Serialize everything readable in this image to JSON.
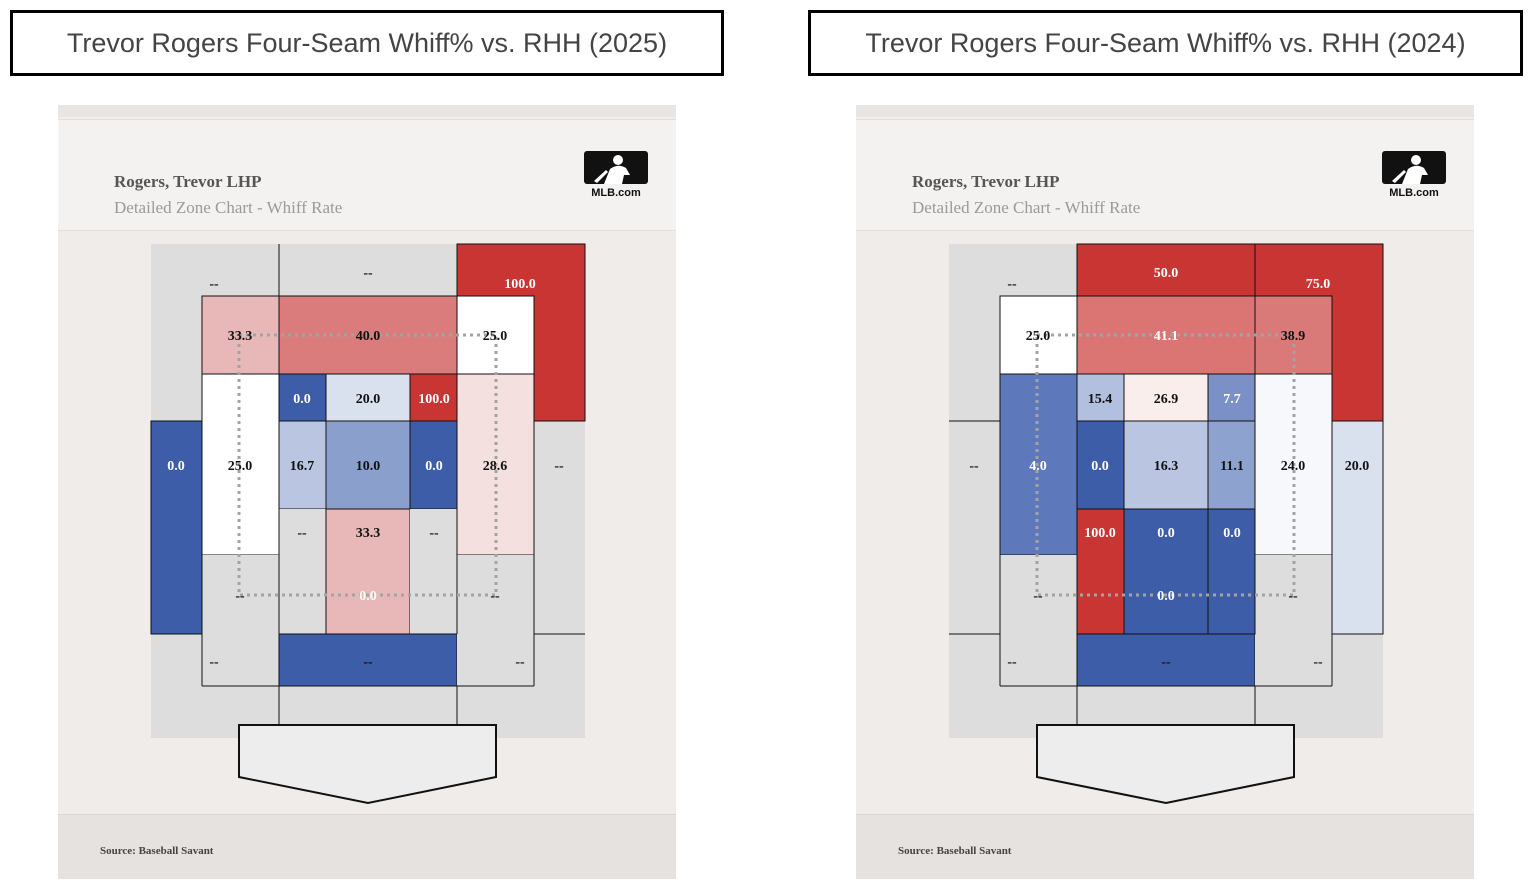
{
  "panels": [
    {
      "title": "Trevor Rogers Four-Seam Whiff% vs. RHH (2025)",
      "player": "Rogers, Trevor LHP",
      "subtitle": "Detailed Zone Chart - Whiff Rate",
      "logo_text": "MLB.com",
      "source": "Source: Baseball Savant"
    },
    {
      "title": "Trevor Rogers Four-Seam Whiff% vs. RHH (2024)",
      "player": "Rogers, Trevor LHP",
      "subtitle": "Detailed Zone Chart - Whiff Rate",
      "logo_text": "MLB.com",
      "source": "Source: Baseball Savant"
    }
  ],
  "colors": {
    "empty": "#dddddd",
    "red_strong": "#c83532",
    "blue_strong": "#3d5da8",
    "white": "#ffffff"
  },
  "chart_data": [
    {
      "type": "heatmap",
      "title": "Trevor Rogers Four-Seam Whiff% vs. RHH (2025)",
      "metric": "Whiff Rate",
      "zones": [
        {
          "id": "TL",
          "value": null,
          "label": "--",
          "color": "#dddddd"
        },
        {
          "id": "TM",
          "value": null,
          "label": "--",
          "color": "#dddddd"
        },
        {
          "id": "TR",
          "value": 100.0,
          "label": "100.0",
          "color": "#c83532"
        },
        {
          "id": "ML",
          "value": 0.0,
          "label": "0.0",
          "color": "#3d5da8"
        },
        {
          "id": "MR",
          "value": null,
          "label": "--",
          "color": "#dddddd"
        },
        {
          "id": "BL",
          "value": null,
          "label": "--",
          "color": "#dddddd"
        },
        {
          "id": "BM",
          "value": null,
          "label": "--",
          "color": "#dddddd"
        },
        {
          "id": "BR",
          "value": null,
          "label": "--",
          "color": "#dddddd"
        },
        {
          "id": "s1",
          "value": 33.3,
          "label": "33.3",
          "color": "#e8b8b8"
        },
        {
          "id": "s2",
          "value": 40.0,
          "label": "40.0",
          "color": "#db7c7c"
        },
        {
          "id": "s3",
          "value": 25.0,
          "label": "25.0",
          "color": "#ffffff"
        },
        {
          "id": "s4",
          "value": 25.0,
          "label": "25.0",
          "color": "#ffffff"
        },
        {
          "id": "s6",
          "value": 28.6,
          "label": "28.6",
          "color": "#f4e0df"
        },
        {
          "id": "s7",
          "value": null,
          "label": "--",
          "color": "#dddddd"
        },
        {
          "id": "s8",
          "value": 0.0,
          "label": "0.0",
          "color": "#3d5da8"
        },
        {
          "id": "s9",
          "value": null,
          "label": "--",
          "color": "#dddddd"
        },
        {
          "id": "z1",
          "value": 0.0,
          "label": "0.0",
          "color": "#3d5da8"
        },
        {
          "id": "z2",
          "value": 20.0,
          "label": "20.0",
          "color": "#d9e0ee"
        },
        {
          "id": "z3",
          "value": 100.0,
          "label": "100.0",
          "color": "#c83532"
        },
        {
          "id": "z4",
          "value": 16.7,
          "label": "16.7",
          "color": "#bac6e1"
        },
        {
          "id": "z5",
          "value": 10.0,
          "label": "10.0",
          "color": "#8b9fcc"
        },
        {
          "id": "z6",
          "value": 0.0,
          "label": "0.0",
          "color": "#3d5da8"
        },
        {
          "id": "z7",
          "value": null,
          "label": "--",
          "color": "#dddddd"
        },
        {
          "id": "z8",
          "value": 33.3,
          "label": "33.3",
          "color": "#e8b8b8"
        },
        {
          "id": "z9",
          "value": null,
          "label": "--",
          "color": "#dddddd"
        }
      ]
    },
    {
      "type": "heatmap",
      "title": "Trevor Rogers Four-Seam Whiff% vs. RHH (2024)",
      "metric": "Whiff Rate",
      "zones": [
        {
          "id": "TL",
          "value": null,
          "label": "--",
          "color": "#dddddd"
        },
        {
          "id": "TM",
          "value": 50.0,
          "label": "50.0",
          "color": "#c83532"
        },
        {
          "id": "TR",
          "value": 75.0,
          "label": "75.0",
          "color": "#c83532"
        },
        {
          "id": "ML",
          "value": null,
          "label": "--",
          "color": "#dddddd"
        },
        {
          "id": "MR",
          "value": 20.0,
          "label": "20.0",
          "color": "#d9e0ee"
        },
        {
          "id": "BL",
          "value": null,
          "label": "--",
          "color": "#dddddd"
        },
        {
          "id": "BM",
          "value": null,
          "label": "--",
          "color": "#dddddd"
        },
        {
          "id": "BR",
          "value": null,
          "label": "--",
          "color": "#dddddd"
        },
        {
          "id": "s1",
          "value": 25.0,
          "label": "25.0",
          "color": "#ffffff"
        },
        {
          "id": "s2",
          "value": 41.1,
          "label": "41.1",
          "color": "#da7573"
        },
        {
          "id": "s3",
          "value": 38.9,
          "label": "38.9",
          "color": "#da7a78"
        },
        {
          "id": "s4",
          "value": 4.0,
          "label": "4.0",
          "color": "#5e79bb"
        },
        {
          "id": "s6",
          "value": 24.0,
          "label": "24.0",
          "color": "#f7f8fc"
        },
        {
          "id": "s7",
          "value": null,
          "label": "--",
          "color": "#dddddd"
        },
        {
          "id": "s8",
          "value": 0.0,
          "label": "0.0",
          "color": "#3d5da8"
        },
        {
          "id": "s9",
          "value": null,
          "label": "--",
          "color": "#dddddd"
        },
        {
          "id": "z1",
          "value": 15.4,
          "label": "15.4",
          "color": "#b2c0df"
        },
        {
          "id": "z2",
          "value": 26.9,
          "label": "26.9",
          "color": "#faeeed"
        },
        {
          "id": "z3",
          "value": 7.7,
          "label": "7.7",
          "color": "#7a90c6"
        },
        {
          "id": "z4",
          "value": 0.0,
          "label": "0.0",
          "color": "#3d5da8"
        },
        {
          "id": "z5",
          "value": 16.3,
          "label": "16.3",
          "color": "#bac6e1"
        },
        {
          "id": "z6",
          "value": 11.1,
          "label": "11.1",
          "color": "#8ea2cf"
        },
        {
          "id": "z7",
          "value": 100.0,
          "label": "100.0",
          "color": "#c83532"
        },
        {
          "id": "z8",
          "value": 0.0,
          "label": "0.0",
          "color": "#3d5da8"
        },
        {
          "id": "z9",
          "value": 0.0,
          "label": "0.0",
          "color": "#3d5da8"
        }
      ]
    }
  ]
}
